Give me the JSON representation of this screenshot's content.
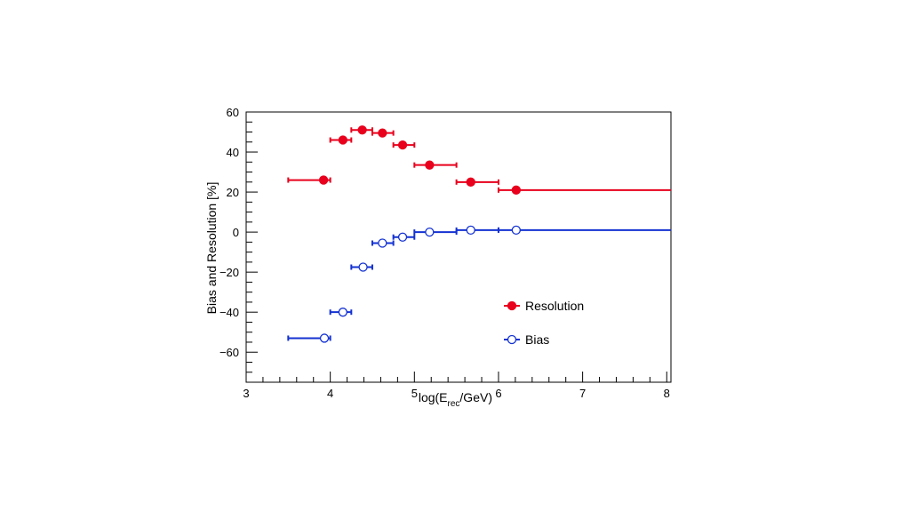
{
  "chart_data": {
    "type": "scatter",
    "xlabel_parts": {
      "prefix": "log(E",
      "sub": "rec",
      "suffix": "/GeV)"
    },
    "ylabel": "Bias and Resolution [%]",
    "xlim": [
      3,
      8.05
    ],
    "ylim": [
      -75,
      60
    ],
    "xticks": [
      3,
      4,
      5,
      6,
      7,
      8
    ],
    "yticks": [
      -60,
      -40,
      -20,
      0,
      20,
      40,
      60
    ],
    "colors": {
      "resolution": "#e8001c",
      "bias": "#1432d2",
      "axis": "#000000"
    },
    "legend_position": "lower-right-inside",
    "series": [
      {
        "name": "Resolution",
        "marker": "filled-circle",
        "color": "#e8001c",
        "points": [
          {
            "x": 3.92,
            "y": 26.0,
            "xlo": 3.5,
            "xhi": 4.0
          },
          {
            "x": 4.15,
            "y": 46.0,
            "xlo": 4.0,
            "xhi": 4.25
          },
          {
            "x": 4.38,
            "y": 51.0,
            "xlo": 4.25,
            "xhi": 4.5
          },
          {
            "x": 4.62,
            "y": 49.5,
            "xlo": 4.5,
            "xhi": 4.75
          },
          {
            "x": 4.86,
            "y": 43.5,
            "xlo": 4.75,
            "xhi": 5.0
          },
          {
            "x": 5.18,
            "y": 33.5,
            "xlo": 5.0,
            "xhi": 5.5
          },
          {
            "x": 5.67,
            "y": 25.0,
            "xlo": 5.5,
            "xhi": 6.0
          },
          {
            "x": 6.21,
            "y": 21.0,
            "xlo": 6.0,
            "xhi": 8.05
          }
        ]
      },
      {
        "name": "Bias",
        "marker": "open-circle",
        "color": "#1432d2",
        "points": [
          {
            "x": 3.93,
            "y": -53.0,
            "xlo": 3.5,
            "xhi": 4.0
          },
          {
            "x": 4.15,
            "y": -40.0,
            "xlo": 4.0,
            "xhi": 4.25
          },
          {
            "x": 4.39,
            "y": -17.5,
            "xlo": 4.25,
            "xhi": 4.5
          },
          {
            "x": 4.62,
            "y": -5.5,
            "xlo": 4.5,
            "xhi": 4.75
          },
          {
            "x": 4.86,
            "y": -2.5,
            "xlo": 4.75,
            "xhi": 5.0
          },
          {
            "x": 5.18,
            "y": 0.0,
            "xlo": 5.0,
            "xhi": 5.5
          },
          {
            "x": 5.67,
            "y": 1.0,
            "xlo": 5.5,
            "xhi": 6.0
          },
          {
            "x": 6.21,
            "y": 1.0,
            "xlo": 6.0,
            "xhi": 8.05
          }
        ]
      }
    ]
  }
}
